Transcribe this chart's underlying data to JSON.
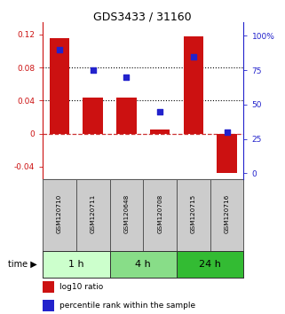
{
  "title": "GDS3433 / 31160",
  "samples": [
    "GSM120710",
    "GSM120711",
    "GSM120648",
    "GSM120708",
    "GSM120715",
    "GSM120716"
  ],
  "log10_ratio": [
    0.115,
    0.043,
    0.043,
    0.005,
    0.118,
    -0.048
  ],
  "percentile_rank": [
    90,
    75,
    70,
    45,
    85,
    30
  ],
  "groups": [
    {
      "label": "1 h",
      "indices": [
        0,
        1
      ],
      "color": "#ccffcc"
    },
    {
      "label": "4 h",
      "indices": [
        2,
        3
      ],
      "color": "#88dd88"
    },
    {
      "label": "24 h",
      "indices": [
        4,
        5
      ],
      "color": "#33bb33"
    }
  ],
  "bar_color": "#cc1111",
  "dot_color": "#2222cc",
  "ylim_left": [
    -0.055,
    0.135
  ],
  "ylim_right": [
    -4.125,
    110
  ],
  "yticks_left": [
    -0.04,
    0.0,
    0.04,
    0.08,
    0.12
  ],
  "ytick_labels_left": [
    "-0.04",
    "0",
    "0.04",
    "0.08",
    "0.12"
  ],
  "yticks_right": [
    0,
    25,
    50,
    75,
    100
  ],
  "ytick_labels_right": [
    "0",
    "25",
    "50",
    "75",
    "100%"
  ],
  "hlines_dotted": [
    0.04,
    0.08
  ],
  "hline_dashed_color": "#cc3333",
  "bar_width": 0.6,
  "sample_box_color": "#cccccc",
  "sample_box_edge": "#555555",
  "group_edge": "#333333"
}
